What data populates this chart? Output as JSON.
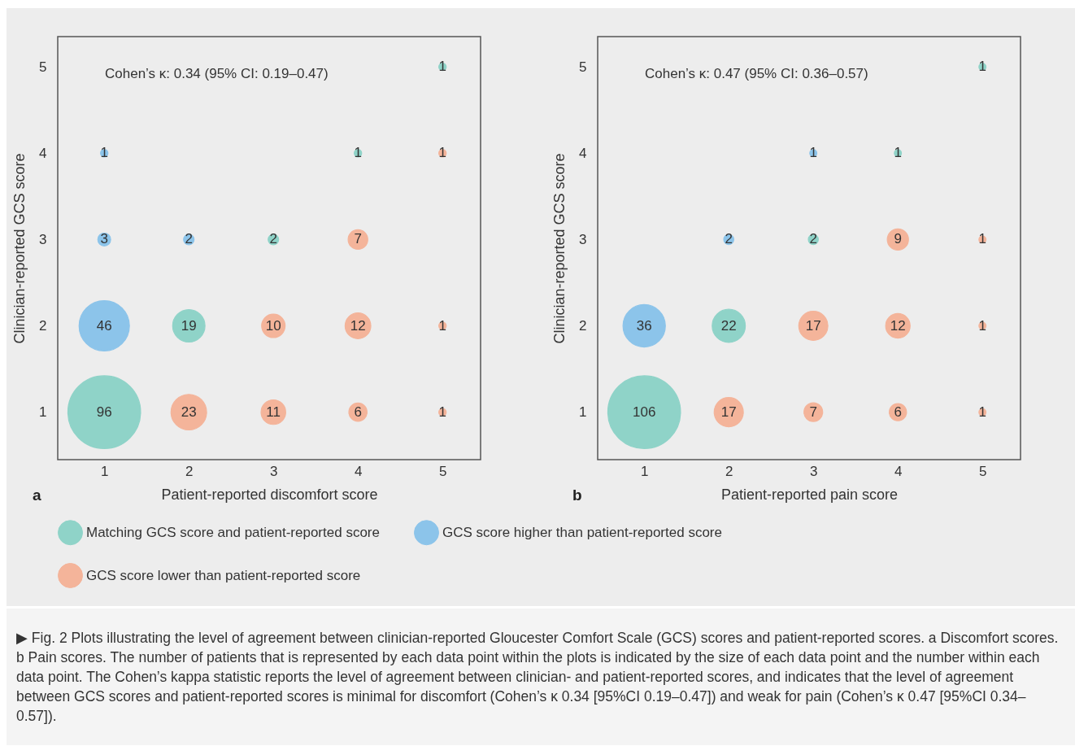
{
  "chart_data": [
    {
      "type": "bubble",
      "xlabel": "Patient-reported discomfort score",
      "ylabel": "Clinician-reported GCS score",
      "xlim": [
        0.45,
        5.45
      ],
      "ylim": [
        0.45,
        5.35
      ],
      "xticks": [
        1,
        2,
        3,
        4,
        5
      ],
      "yticks": [
        1,
        2,
        3,
        4,
        5
      ],
      "legend": "bottom",
      "annotations": [
        "Cohen’s κ: 0.34 (95% CI: 0.19–0.47)",
        "a"
      ],
      "series": [
        {
          "name": "Matching GCS score and patient-reported score",
          "color": "#8fd3c8",
          "x": [
            1,
            2,
            3,
            4,
            5
          ],
          "values": [
            1,
            2,
            3,
            4,
            5
          ],
          "sizes": [
            96,
            19,
            2,
            1,
            1
          ],
          "value_labels": [
            "96",
            "19",
            "2",
            "1",
            "1"
          ]
        },
        {
          "name": "GCS score higher than patient-reported score",
          "color": "#8cc4ea",
          "x": [
            1,
            1,
            1,
            2
          ],
          "values": [
            4,
            3,
            2,
            3
          ],
          "sizes": [
            1,
            3,
            46,
            2
          ],
          "value_labels": [
            "1",
            "3",
            "46",
            "2"
          ]
        },
        {
          "name": "GCS score lower than patient-reported score",
          "color": "#f4b49a",
          "x": [
            2,
            3,
            4,
            5,
            3,
            4,
            5,
            4,
            5
          ],
          "values": [
            1,
            1,
            1,
            1,
            2,
            2,
            2,
            3,
            4
          ],
          "sizes": [
            23,
            11,
            6,
            1,
            10,
            12,
            1,
            7,
            1
          ],
          "value_labels": [
            "23",
            "11",
            "6",
            "1",
            "10",
            "12",
            "1",
            "7",
            "1"
          ]
        }
      ]
    },
    {
      "type": "bubble",
      "xlabel": "Patient-reported pain score",
      "ylabel": "Clinician-reported GCS score",
      "xlim": [
        0.45,
        5.45
      ],
      "ylim": [
        0.45,
        5.35
      ],
      "xticks": [
        1,
        2,
        3,
        4,
        5
      ],
      "yticks": [
        1,
        2,
        3,
        4,
        5
      ],
      "annotations": [
        "Cohen’s κ: 0.47 (95% CI: 0.36–0.57)",
        "b",
        "▶ Fig. 2 Plots illustrating the level of agreement between clinician-reported Gloucester Comfort Scale (GCS) scores and patient-reported scores. a Discomfort scores. b Pain scores. The number of patients that is represented by each data point within the plots is indicated by the size of each data point and the number within each data point. The Cohen’s kappa statistic reports the level of agreement between clinician- and patient-reported scores, and indicates that the level of agreement between GCS scores and patient-reported scores is minimal for discomfort (Cohen’s κ 0.34 [95%CI 0.19–0.47]) and weak for pain (Cohen’s κ 0.47 [95%CI 0.34–0.57])."
      ],
      "series": [
        {
          "color": "#8fd3c8",
          "x": [
            1,
            2,
            3,
            4,
            5
          ],
          "values": [
            1,
            2,
            3,
            4,
            5
          ],
          "sizes": [
            106,
            22,
            2,
            1,
            1
          ],
          "value_labels": [
            "106",
            "22",
            "2",
            "1",
            "1"
          ]
        },
        {
          "color": "#8cc4ea",
          "x": [
            1,
            2,
            3
          ],
          "values": [
            2,
            3,
            4
          ],
          "sizes": [
            36,
            2,
            1
          ],
          "value_labels": [
            "36",
            "2",
            "1"
          ]
        },
        {
          "color": "#f4b49a",
          "x": [
            2,
            3,
            4,
            5,
            3,
            4,
            5,
            4,
            5
          ],
          "values": [
            1,
            1,
            1,
            1,
            2,
            2,
            2,
            3,
            3
          ],
          "sizes": [
            17,
            7,
            6,
            1,
            17,
            12,
            1,
            9,
            1
          ],
          "value_labels": [
            "17",
            "7",
            "6",
            "1",
            "17",
            "12",
            "1",
            "9",
            "1"
          ]
        }
      ]
    }
  ]
}
